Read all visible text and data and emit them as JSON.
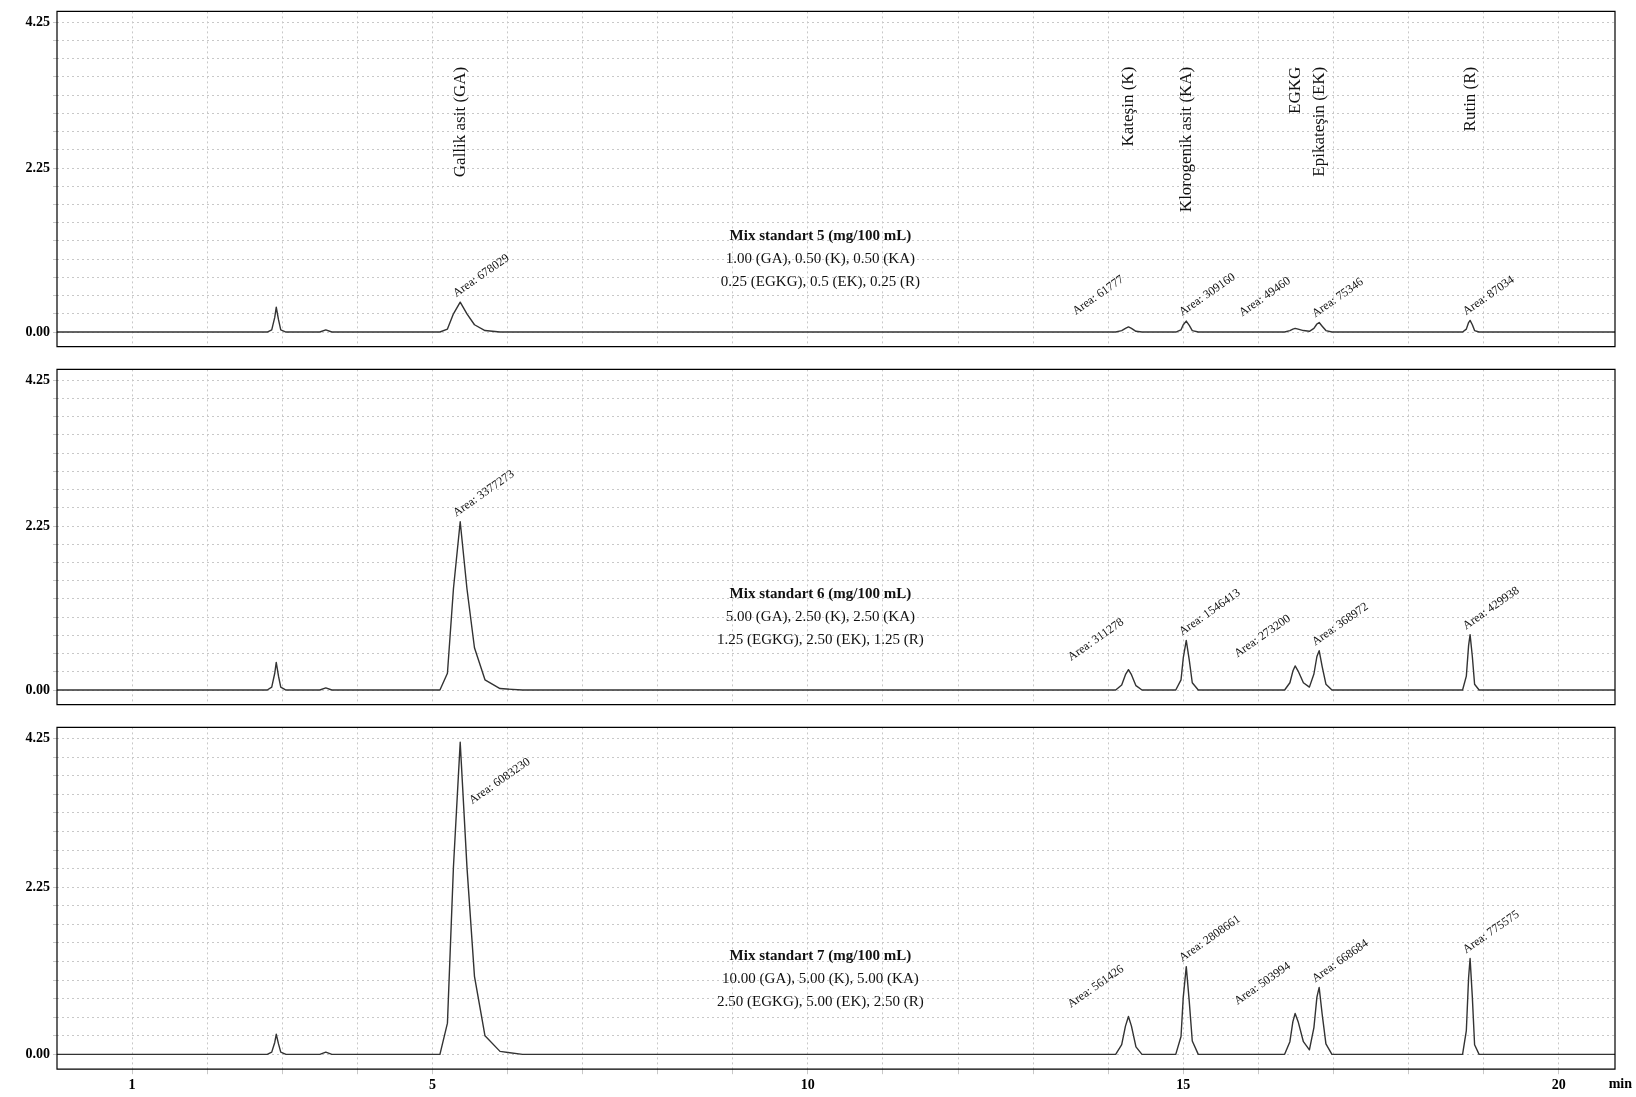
{
  "chart_data": [
    {
      "type": "line",
      "color": "#333333",
      "marker": "none",
      "line_style": "solid",
      "grid": true,
      "tick_labels": "y",
      "x": [
        0,
        2.8,
        2.86,
        2.9,
        2.92,
        2.95,
        2.98,
        3.05,
        3.5,
        3.58,
        3.66,
        5.1,
        5.2,
        5.28,
        5.37,
        5.46,
        5.56,
        5.7,
        5.9,
        6.2,
        14.1,
        14.18,
        14.23,
        14.27,
        14.31,
        14.37,
        14.45,
        14.9,
        14.97,
        15.0,
        15.04,
        15.08,
        15.12,
        15.2,
        16.35,
        16.42,
        16.46,
        16.49,
        16.53,
        16.6,
        16.68,
        16.74,
        16.78,
        16.81,
        16.85,
        16.9,
        16.98,
        18.72,
        18.77,
        18.8,
        18.82,
        18.85,
        18.88,
        18.94,
        20.75
      ],
      "values": [
        0,
        0,
        0.03,
        0.2,
        0.34,
        0.17,
        0.03,
        0,
        0,
        0.03,
        0,
        0,
        0.04,
        0.25,
        0.41,
        0.25,
        0.1,
        0.02,
        0,
        0,
        0,
        0.02,
        0.05,
        0.07,
        0.05,
        0.01,
        0,
        0,
        0.03,
        0.1,
        0.15,
        0.09,
        0.02,
        0,
        0,
        0.02,
        0.04,
        0.05,
        0.04,
        0.02,
        0.01,
        0.05,
        0.11,
        0.13,
        0.08,
        0.02,
        0,
        0,
        0.04,
        0.13,
        0.16,
        0.1,
        0.02,
        0,
        0
      ],
      "xlim": [
        0,
        20.75
      ],
      "ylim": [
        -0.2,
        4.4
      ],
      "xticks": [
        {
          "value": 1,
          "label": null
        },
        {
          "value": 2,
          "label": null
        },
        {
          "value": 3,
          "label": null
        },
        {
          "value": 4,
          "label": null
        },
        {
          "value": 5,
          "label": null
        },
        {
          "value": 6,
          "label": null
        },
        {
          "value": 7,
          "label": null
        },
        {
          "value": 8,
          "label": null
        },
        {
          "value": 9,
          "label": null
        },
        {
          "value": 10,
          "label": null
        },
        {
          "value": 11,
          "label": null
        },
        {
          "value": 12,
          "label": null
        },
        {
          "value": 13,
          "label": null
        },
        {
          "value": 14,
          "label": null
        },
        {
          "value": 15,
          "label": null
        },
        {
          "value": 16,
          "label": null
        },
        {
          "value": 17,
          "label": null
        },
        {
          "value": 18,
          "label": null
        },
        {
          "value": 19,
          "label": null
        },
        {
          "value": 20,
          "label": null
        }
      ],
      "yticks": [
        {
          "value": 0,
          "label": "0.00"
        },
        {
          "value": 0.25,
          "label": null
        },
        {
          "value": 0.5,
          "label": null
        },
        {
          "value": 0.75,
          "label": null
        },
        {
          "value": 1,
          "label": null
        },
        {
          "value": 1.25,
          "label": null
        },
        {
          "value": 1.5,
          "label": null
        },
        {
          "value": 1.75,
          "label": null
        },
        {
          "value": 2,
          "label": null
        },
        {
          "value": 2.25,
          "label": "2.25"
        },
        {
          "value": 2.5,
          "label": null
        },
        {
          "value": 2.75,
          "label": null
        },
        {
          "value": 3,
          "label": null
        },
        {
          "value": 3.25,
          "label": null
        },
        {
          "value": 3.5,
          "label": null
        },
        {
          "value": 3.75,
          "label": null
        },
        {
          "value": 4,
          "label": null
        },
        {
          "value": 4.25,
          "label": "4.25"
        }
      ],
      "annotations": [
        "Mix standart 5 (mg/100 mL)",
        "1.00 (GA), 0.50 (K), 0.50 (KA)",
        "0.25 (EGKG), 0.5 (EK), 0.25 (R)",
        {
          "text": "Area: 678029",
          "x": 5.37,
          "y": 0.41
        },
        {
          "text": "Area: 61777",
          "x": 14.27,
          "y": 0.07
        },
        {
          "text": "Area: 309160",
          "x": 15.04,
          "y": 0.15
        },
        {
          "text": "Area: 49460",
          "x": 16.49,
          "y": 0.05
        },
        {
          "text": "Area: 75346",
          "x": 16.81,
          "y": 0.13
        },
        {
          "text": "Area: 87034",
          "x": 18.82,
          "y": 0.16
        },
        "Gallik asit (GA)",
        "Kateşin (K)",
        "Klorogenik asit (KA)",
        "EGKG",
        "Epikateşin (EK)",
        "Rutin (R)"
      ]
    },
    {
      "type": "line",
      "color": "#333333",
      "marker": "none",
      "line_style": "solid",
      "grid": true,
      "tick_labels": "y",
      "x": [
        0,
        2.8,
        2.86,
        2.9,
        2.92,
        2.95,
        2.98,
        3.05,
        3.5,
        3.58,
        3.66,
        5.1,
        5.2,
        5.28,
        5.37,
        5.46,
        5.56,
        5.7,
        5.9,
        6.2,
        14.1,
        14.18,
        14.23,
        14.27,
        14.31,
        14.37,
        14.45,
        14.9,
        14.97,
        15.0,
        15.04,
        15.08,
        15.12,
        15.2,
        16.35,
        16.42,
        16.46,
        16.49,
        16.53,
        16.6,
        16.68,
        16.74,
        16.78,
        16.81,
        16.85,
        16.9,
        16.98,
        18.72,
        18.77,
        18.8,
        18.82,
        18.85,
        18.88,
        18.94,
        20.75
      ],
      "values": [
        0,
        0,
        0.04,
        0.23,
        0.38,
        0.19,
        0.04,
        0,
        0,
        0.03,
        0,
        0,
        0.23,
        1.39,
        2.31,
        1.39,
        0.58,
        0.14,
        0.02,
        0,
        0,
        0.07,
        0.21,
        0.28,
        0.21,
        0.06,
        0,
        0,
        0.14,
        0.44,
        0.68,
        0.41,
        0.1,
        0,
        0,
        0.1,
        0.26,
        0.33,
        0.26,
        0.1,
        0.04,
        0.22,
        0.46,
        0.54,
        0.32,
        0.08,
        0,
        0,
        0.19,
        0.61,
        0.76,
        0.46,
        0.08,
        0,
        0
      ],
      "xlim": [
        0,
        20.75
      ],
      "ylim": [
        -0.2,
        4.4
      ],
      "xticks": [
        {
          "value": 1,
          "label": null
        },
        {
          "value": 2,
          "label": null
        },
        {
          "value": 3,
          "label": null
        },
        {
          "value": 4,
          "label": null
        },
        {
          "value": 5,
          "label": null
        },
        {
          "value": 6,
          "label": null
        },
        {
          "value": 7,
          "label": null
        },
        {
          "value": 8,
          "label": null
        },
        {
          "value": 9,
          "label": null
        },
        {
          "value": 10,
          "label": null
        },
        {
          "value": 11,
          "label": null
        },
        {
          "value": 12,
          "label": null
        },
        {
          "value": 13,
          "label": null
        },
        {
          "value": 14,
          "label": null
        },
        {
          "value": 15,
          "label": null
        },
        {
          "value": 16,
          "label": null
        },
        {
          "value": 17,
          "label": null
        },
        {
          "value": 18,
          "label": null
        },
        {
          "value": 19,
          "label": null
        },
        {
          "value": 20,
          "label": null
        }
      ],
      "yticks": [
        {
          "value": 0,
          "label": "0.00"
        },
        {
          "value": 0.25,
          "label": null
        },
        {
          "value": 0.5,
          "label": null
        },
        {
          "value": 0.75,
          "label": null
        },
        {
          "value": 1,
          "label": null
        },
        {
          "value": 1.25,
          "label": null
        },
        {
          "value": 1.5,
          "label": null
        },
        {
          "value": 1.75,
          "label": null
        },
        {
          "value": 2,
          "label": null
        },
        {
          "value": 2.25,
          "label": "2.25"
        },
        {
          "value": 2.5,
          "label": null
        },
        {
          "value": 2.75,
          "label": null
        },
        {
          "value": 3,
          "label": null
        },
        {
          "value": 3.25,
          "label": null
        },
        {
          "value": 3.5,
          "label": null
        },
        {
          "value": 3.75,
          "label": null
        },
        {
          "value": 4,
          "label": null
        },
        {
          "value": 4.25,
          "label": "4.25"
        }
      ],
      "annotations": [
        "Mix standart 6 (mg/100 mL)",
        "5.00 (GA), 2.50 (K), 2.50 (KA)",
        "1.25 (EGKG), 2.50 (EK), 1.25 (R)",
        {
          "text": "Area: 3377273",
          "x": 5.37,
          "y": 2.31
        },
        {
          "text": "Area: 311278",
          "x": 14.27,
          "y": 0.28
        },
        {
          "text": "Area: 1546413",
          "x": 15.04,
          "y": 0.68
        },
        {
          "text": "Area: 273200",
          "x": 16.49,
          "y": 0.33
        },
        {
          "text": "Area: 368972",
          "x": 16.81,
          "y": 0.54
        },
        {
          "text": "Area: 429938",
          "x": 18.82,
          "y": 0.76
        }
      ]
    },
    {
      "type": "line",
      "color": "#333333",
      "marker": "none",
      "line_style": "solid",
      "grid": true,
      "xlabel": "min",
      "x": [
        0,
        2.8,
        2.86,
        2.9,
        2.92,
        2.95,
        2.98,
        3.05,
        3.5,
        3.58,
        3.66,
        5.1,
        5.2,
        5.28,
        5.37,
        5.46,
        5.56,
        5.7,
        5.9,
        6.2,
        14.1,
        14.18,
        14.23,
        14.27,
        14.31,
        14.37,
        14.45,
        14.9,
        14.97,
        15.0,
        15.04,
        15.08,
        15.12,
        15.2,
        16.35,
        16.42,
        16.46,
        16.49,
        16.53,
        16.6,
        16.68,
        16.74,
        16.78,
        16.81,
        16.85,
        16.9,
        16.98,
        18.72,
        18.77,
        18.8,
        18.82,
        18.85,
        18.88,
        18.94,
        20.75
      ],
      "values": [
        0,
        0,
        0.03,
        0.16,
        0.27,
        0.14,
        0.03,
        0,
        0,
        0.03,
        0,
        0,
        0.42,
        2.52,
        4.2,
        2.52,
        1.05,
        0.25,
        0.04,
        0,
        0,
        0.13,
        0.38,
        0.51,
        0.38,
        0.1,
        0,
        0,
        0.24,
        0.77,
        1.18,
        0.71,
        0.18,
        0,
        0,
        0.17,
        0.44,
        0.55,
        0.44,
        0.17,
        0.06,
        0.36,
        0.77,
        0.9,
        0.54,
        0.14,
        0,
        0,
        0.32,
        1.03,
        1.29,
        0.77,
        0.13,
        0,
        0
      ],
      "xlim": [
        0,
        20.75
      ],
      "ylim": [
        -0.2,
        4.4
      ],
      "xticks": [
        {
          "value": 1,
          "label": "1"
        },
        {
          "value": 2,
          "label": null
        },
        {
          "value": 3,
          "label": null
        },
        {
          "value": 4,
          "label": null
        },
        {
          "value": 5,
          "label": "5"
        },
        {
          "value": 6,
          "label": null
        },
        {
          "value": 7,
          "label": null
        },
        {
          "value": 8,
          "label": null
        },
        {
          "value": 9,
          "label": null
        },
        {
          "value": 10,
          "label": "10"
        },
        {
          "value": 11,
          "label": null
        },
        {
          "value": 12,
          "label": null
        },
        {
          "value": 13,
          "label": null
        },
        {
          "value": 14,
          "label": null
        },
        {
          "value": 15,
          "label": "15"
        },
        {
          "value": 16,
          "label": null
        },
        {
          "value": 17,
          "label": null
        },
        {
          "value": 18,
          "label": null
        },
        {
          "value": 19,
          "label": null
        },
        {
          "value": 20,
          "label": "20"
        }
      ],
      "yticks": [
        {
          "value": 0,
          "label": "0.00"
        },
        {
          "value": 0.25,
          "label": null
        },
        {
          "value": 0.5,
          "label": null
        },
        {
          "value": 0.75,
          "label": null
        },
        {
          "value": 1,
          "label": null
        },
        {
          "value": 1.25,
          "label": null
        },
        {
          "value": 1.5,
          "label": null
        },
        {
          "value": 1.75,
          "label": null
        },
        {
          "value": 2,
          "label": null
        },
        {
          "value": 2.25,
          "label": "2.25"
        },
        {
          "value": 2.5,
          "label": null
        },
        {
          "value": 2.75,
          "label": null
        },
        {
          "value": 3,
          "label": null
        },
        {
          "value": 3.25,
          "label": null
        },
        {
          "value": 3.5,
          "label": null
        },
        {
          "value": 3.75,
          "label": null
        },
        {
          "value": 4,
          "label": null
        },
        {
          "value": 4.25,
          "label": "4.25"
        }
      ],
      "annotations": [
        "Mix standart 7 (mg/100 mL)",
        "10.00 (GA), 5.00 (K), 5.00 (KA)",
        "2.50 (EGKG), 5.00 (EK), 2.50 (R)",
        {
          "text": "Area: 6083230",
          "x": 5.37,
          "y": 4.2
        },
        {
          "text": "Area: 561426",
          "x": 14.27,
          "y": 0.51
        },
        {
          "text": "Area: 2808661",
          "x": 15.04,
          "y": 1.18
        },
        {
          "text": "Area: 503994",
          "x": 16.49,
          "y": 0.55
        },
        {
          "text": "Area: 668684",
          "x": 16.81,
          "y": 0.9
        },
        {
          "text": "Area: 775575",
          "x": 18.82,
          "y": 1.29
        }
      ]
    }
  ]
}
